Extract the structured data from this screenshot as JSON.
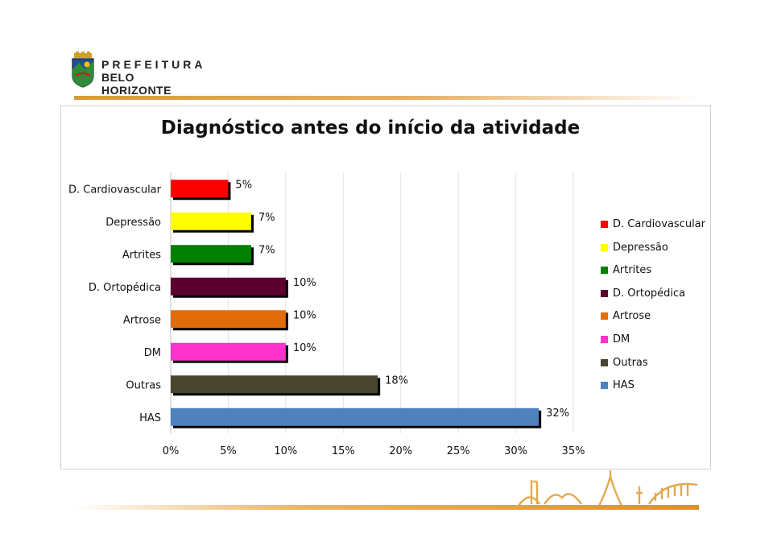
{
  "header": {
    "logo_line1": "PREFEITURA",
    "logo_line2": "BELO HORIZONTE"
  },
  "chart_data": {
    "type": "bar",
    "orientation": "horizontal",
    "title": "Diagnóstico antes do início da atividade",
    "categories": [
      "D. Cardiovascular",
      "Depressão",
      "Artrites",
      "D. Ortopédica",
      "Artrose",
      "DM",
      "Outras",
      "HAS"
    ],
    "values": [
      5,
      7,
      7,
      10,
      10,
      10,
      18,
      32
    ],
    "data_labels": [
      "5%",
      "7%",
      "7%",
      "10%",
      "10%",
      "10%",
      "18%",
      "32%"
    ],
    "colors": [
      "#ff0000",
      "#ffff00",
      "#008000",
      "#5c0030",
      "#e36c0a",
      "#ff33cc",
      "#4a4530",
      "#4f81bd"
    ],
    "xlim": [
      0,
      35
    ],
    "xticks": [
      "0%",
      "5%",
      "10%",
      "15%",
      "20%",
      "25%",
      "30%",
      "35%"
    ],
    "xlabel": "",
    "ylabel": "",
    "grid": "vertical",
    "legend": {
      "position": "right",
      "entries": [
        "D. Cardiovascular",
        "Depressão",
        "Artrites",
        "D. Ortopédica",
        "Artrose",
        "DM",
        "Outras",
        "HAS"
      ]
    }
  }
}
